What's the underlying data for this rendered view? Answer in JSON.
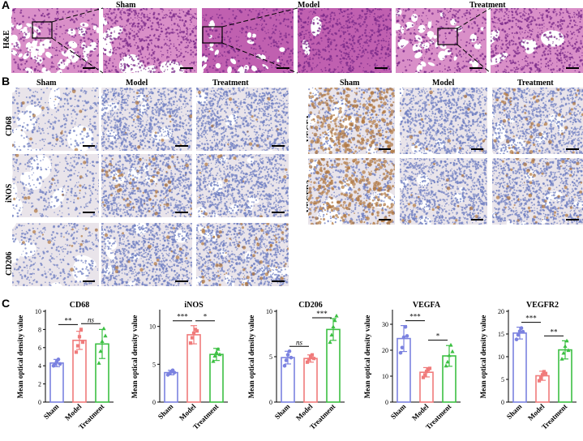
{
  "panels": {
    "A": {
      "letter": "A",
      "row_label": "H&E",
      "groups": [
        "Sham",
        "Model",
        "Treatment"
      ]
    },
    "B": {
      "letter": "B",
      "col_labels_left": [
        "Sham",
        "Model",
        "Treatment"
      ],
      "col_labels_right": [
        "Sham",
        "Model",
        "Treatment"
      ],
      "row_labels_left": [
        "CD68",
        "iNOS",
        "CD206"
      ],
      "row_labels_right": [
        "VEGFA",
        "VEGFR2"
      ]
    },
    "C": {
      "letter": "C"
    }
  },
  "colors": {
    "sham": "#7b82e0",
    "model": "#f07b7b",
    "treatment": "#3cc043",
    "he_tissue": "#d98fc8",
    "he_dense": "#c060b0",
    "ihc_bg": "#e9e4ea",
    "ihc_nuclei": "#6f7fc2",
    "ihc_brown": "#b07840"
  },
  "chart_data": [
    {
      "type": "bar",
      "title": "CD68",
      "ylabel": "Mean optical density value",
      "categories": [
        "Sham",
        "Model",
        "Treatment"
      ],
      "values": [
        4.3,
        6.8,
        6.4
      ],
      "errors": [
        0.4,
        1.0,
        1.6
      ],
      "points": [
        [
          4.0,
          4.2,
          4.5,
          4.7,
          4.2
        ],
        [
          5.5,
          6.2,
          7.2,
          8.0,
          6.6
        ],
        [
          4.3,
          5.6,
          6.7,
          8.1,
          7.3
        ]
      ],
      "ylim": [
        0,
        10
      ],
      "yticks": [
        0,
        2,
        4,
        6,
        8,
        10
      ],
      "significance": [
        {
          "from": 0,
          "to": 1,
          "label": "**"
        },
        {
          "from": 1,
          "to": 2,
          "label": "ns"
        }
      ]
    },
    {
      "type": "bar",
      "title": "iNOS",
      "ylabel": "Mean optical density value",
      "categories": [
        "Sham",
        "Model",
        "Treatment"
      ],
      "values": [
        3.9,
        8.9,
        6.3
      ],
      "errors": [
        0.3,
        1.2,
        0.8
      ],
      "points": [
        [
          3.6,
          3.8,
          4.0,
          4.2,
          3.9
        ],
        [
          7.8,
          8.5,
          9.1,
          9.6,
          9.4
        ],
        [
          5.4,
          6.1,
          6.6,
          7.0,
          6.3
        ]
      ],
      "ylim": [
        0,
        12
      ],
      "yticks": [
        0,
        5,
        10
      ],
      "significance": [
        {
          "from": 0,
          "to": 1,
          "label": "***"
        },
        {
          "from": 1,
          "to": 2,
          "label": "*"
        }
      ]
    },
    {
      "type": "bar",
      "title": "CD206",
      "ylabel": "Mean optical density value",
      "categories": [
        "Sham",
        "Model",
        "Treatment"
      ],
      "values": [
        4.9,
        4.8,
        8.0
      ],
      "errors": [
        0.7,
        0.4,
        1.2
      ],
      "points": [
        [
          4.0,
          4.6,
          5.2,
          5.6,
          4.9
        ],
        [
          4.4,
          4.7,
          5.0,
          5.2,
          4.8
        ],
        [
          6.6,
          7.4,
          8.3,
          9.0,
          9.5
        ]
      ],
      "ylim": [
        0,
        10
      ],
      "yticks": [
        0,
        5,
        10
      ],
      "significance": [
        {
          "from": 0,
          "to": 1,
          "label": "ns"
        },
        {
          "from": 1,
          "to": 2,
          "label": "***"
        }
      ]
    },
    {
      "type": "bar",
      "title": "VEGFA",
      "ylabel": "Mean optical density value",
      "categories": [
        "Sham",
        "Model",
        "Treatment"
      ],
      "values": [
        24.5,
        11.5,
        17.8
      ],
      "errors": [
        5.0,
        1.8,
        4.0
      ],
      "points": [
        [
          19.0,
          21.0,
          25.0,
          29.0,
          25.5
        ],
        [
          9.5,
          10.5,
          11.8,
          12.5,
          13.0
        ],
        [
          14.0,
          15.5,
          18.0,
          22.0,
          19.5
        ]
      ],
      "ylim": [
        0,
        35
      ],
      "yticks": [
        0,
        10,
        20,
        30
      ],
      "significance": [
        {
          "from": 0,
          "to": 1,
          "label": "***"
        },
        {
          "from": 1,
          "to": 2,
          "label": "*"
        }
      ]
    },
    {
      "type": "bar",
      "title": "VEGFR2",
      "ylabel": "Mean optical density value",
      "categories": [
        "Sham",
        "Model",
        "Treatment"
      ],
      "values": [
        15.2,
        5.8,
        11.5
      ],
      "errors": [
        1.3,
        1.0,
        2.0
      ],
      "points": [
        [
          13.8,
          14.8,
          15.6,
          16.3,
          15.5
        ],
        [
          4.7,
          5.3,
          6.0,
          6.7,
          6.3
        ],
        [
          9.5,
          10.8,
          12.3,
          13.5,
          11.4
        ]
      ],
      "ylim": [
        0,
        20
      ],
      "yticks": [
        0,
        5,
        10,
        15,
        20
      ],
      "significance": [
        {
          "from": 0,
          "to": 1,
          "label": "***"
        },
        {
          "from": 1,
          "to": 2,
          "label": "**"
        }
      ]
    }
  ]
}
